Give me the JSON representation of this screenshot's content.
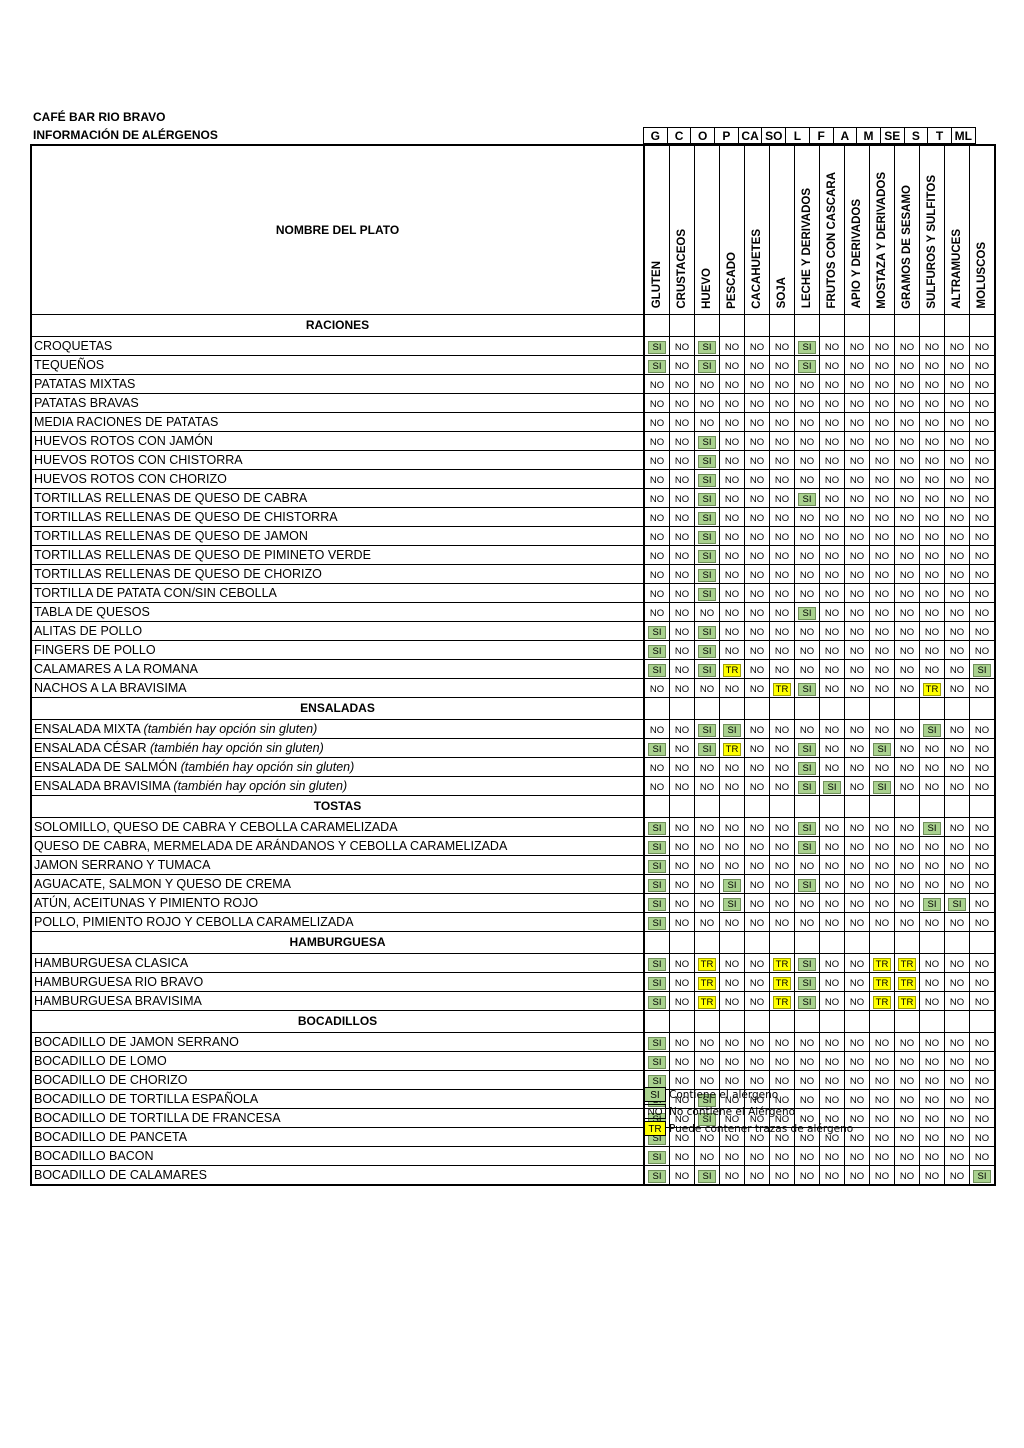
{
  "header": {
    "title": "CAFÉ BAR RIO BRAVO",
    "subtitle": "INFORMACIÓN DE ALÉRGENOS"
  },
  "codes": [
    "G",
    "C",
    "O",
    "P",
    "CA",
    "SO",
    "L",
    "F",
    "A",
    "M",
    "SE",
    "S",
    "T",
    "ML"
  ],
  "name_header": "NOMBRE DEL PLATO",
  "allergens": [
    "GLUTEN",
    "CRUSTACEOS",
    "HUEVO",
    "PESCADO",
    "CACAHUETES",
    "SOJA",
    "LECHE Y DERIVADOS",
    "FRUTOS CON CASCARA",
    "APIO Y DERIVADOS",
    "MOSTAZA Y DERIVADOS",
    "GRAMOS DE SESAMO",
    "SULFUROS Y SULFITOS",
    "ALTRAMUCES",
    "MOLUSCOS"
  ],
  "colors": {
    "si": "#a9d18e",
    "tr": "#ffff00"
  },
  "sections": [
    {
      "name": "RACIONES",
      "rows": [
        {
          "dish": "CROQUETAS",
          "note": "",
          "values": [
            "SI",
            "NO",
            "SI",
            "NO",
            "NO",
            "NO",
            "SI",
            "NO",
            "NO",
            "NO",
            "NO",
            "NO",
            "NO",
            "NO"
          ]
        },
        {
          "dish": "TEQUEÑOS",
          "note": "",
          "values": [
            "SI",
            "NO",
            "SI",
            "NO",
            "NO",
            "NO",
            "SI",
            "NO",
            "NO",
            "NO",
            "NO",
            "NO",
            "NO",
            "NO"
          ]
        },
        {
          "dish": "PATATAS MIXTAS",
          "note": "",
          "values": [
            "NO",
            "NO",
            "NO",
            "NO",
            "NO",
            "NO",
            "NO",
            "NO",
            "NO",
            "NO",
            "NO",
            "NO",
            "NO",
            "NO"
          ]
        },
        {
          "dish": "PATATAS BRAVAS",
          "note": "",
          "values": [
            "NO",
            "NO",
            "NO",
            "NO",
            "NO",
            "NO",
            "NO",
            "NO",
            "NO",
            "NO",
            "NO",
            "NO",
            "NO",
            "NO"
          ]
        },
        {
          "dish": "MEDIA RACIONES DE PATATAS",
          "note": "",
          "values": [
            "NO",
            "NO",
            "NO",
            "NO",
            "NO",
            "NO",
            "NO",
            "NO",
            "NO",
            "NO",
            "NO",
            "NO",
            "NO",
            "NO"
          ]
        },
        {
          "dish": "HUEVOS ROTOS CON JAMÓN",
          "note": "",
          "values": [
            "NO",
            "NO",
            "SI",
            "NO",
            "NO",
            "NO",
            "NO",
            "NO",
            "NO",
            "NO",
            "NO",
            "NO",
            "NO",
            "NO"
          ]
        },
        {
          "dish": "HUEVOS ROTOS CON CHISTORRA",
          "note": "",
          "values": [
            "NO",
            "NO",
            "SI",
            "NO",
            "NO",
            "NO",
            "NO",
            "NO",
            "NO",
            "NO",
            "NO",
            "NO",
            "NO",
            "NO"
          ]
        },
        {
          "dish": "HUEVOS ROTOS CON CHORIZO",
          "note": "",
          "values": [
            "NO",
            "NO",
            "SI",
            "NO",
            "NO",
            "NO",
            "NO",
            "NO",
            "NO",
            "NO",
            "NO",
            "NO",
            "NO",
            "NO"
          ]
        },
        {
          "dish": "TORTILLAS RELLENAS DE QUESO DE CABRA",
          "note": "",
          "values": [
            "NO",
            "NO",
            "SI",
            "NO",
            "NO",
            "NO",
            "SI",
            "NO",
            "NO",
            "NO",
            "NO",
            "NO",
            "NO",
            "NO"
          ]
        },
        {
          "dish": "TORTILLAS RELLENAS DE QUESO DE CHISTORRA",
          "note": "",
          "values": [
            "NO",
            "NO",
            "SI",
            "NO",
            "NO",
            "NO",
            "NO",
            "NO",
            "NO",
            "NO",
            "NO",
            "NO",
            "NO",
            "NO"
          ]
        },
        {
          "dish": "TORTILLAS RELLENAS DE QUESO DE JAMON",
          "note": "",
          "values": [
            "NO",
            "NO",
            "SI",
            "NO",
            "NO",
            "NO",
            "NO",
            "NO",
            "NO",
            "NO",
            "NO",
            "NO",
            "NO",
            "NO"
          ]
        },
        {
          "dish": "TORTILLAS RELLENAS DE QUESO DE PIMINETO VERDE",
          "note": "",
          "values": [
            "NO",
            "NO",
            "SI",
            "NO",
            "NO",
            "NO",
            "NO",
            "NO",
            "NO",
            "NO",
            "NO",
            "NO",
            "NO",
            "NO"
          ]
        },
        {
          "dish": "TORTILLAS RELLENAS DE QUESO DE CHORIZO",
          "note": "",
          "values": [
            "NO",
            "NO",
            "SI",
            "NO",
            "NO",
            "NO",
            "NO",
            "NO",
            "NO",
            "NO",
            "NO",
            "NO",
            "NO",
            "NO"
          ]
        },
        {
          "dish": "TORTILLA DE PATATA CON/SIN CEBOLLA",
          "note": "",
          "values": [
            "NO",
            "NO",
            "SI",
            "NO",
            "NO",
            "NO",
            "NO",
            "NO",
            "NO",
            "NO",
            "NO",
            "NO",
            "NO",
            "NO"
          ]
        },
        {
          "dish": "TABLA DE QUESOS",
          "note": "",
          "values": [
            "NO",
            "NO",
            "NO",
            "NO",
            "NO",
            "NO",
            "SI",
            "NO",
            "NO",
            "NO",
            "NO",
            "NO",
            "NO",
            "NO"
          ]
        },
        {
          "dish": "ALITAS DE POLLO",
          "note": "",
          "values": [
            "SI",
            "NO",
            "SI",
            "NO",
            "NO",
            "NO",
            "NO",
            "NO",
            "NO",
            "NO",
            "NO",
            "NO",
            "NO",
            "NO"
          ]
        },
        {
          "dish": "FINGERS DE POLLO",
          "note": "",
          "values": [
            "SI",
            "NO",
            "SI",
            "NO",
            "NO",
            "NO",
            "NO",
            "NO",
            "NO",
            "NO",
            "NO",
            "NO",
            "NO",
            "NO"
          ]
        },
        {
          "dish": "CALAMARES A LA ROMANA",
          "note": "",
          "values": [
            "SI",
            "NO",
            "SI",
            "TR",
            "NO",
            "NO",
            "NO",
            "NO",
            "NO",
            "NO",
            "NO",
            "NO",
            "NO",
            "SI"
          ]
        },
        {
          "dish": "NACHOS A LA BRAVISIMA",
          "note": "",
          "values": [
            "NO",
            "NO",
            "NO",
            "NO",
            "NO",
            "TR",
            "SI",
            "NO",
            "NO",
            "NO",
            "NO",
            "TR",
            "NO",
            "NO"
          ]
        }
      ]
    },
    {
      "name": "ENSALADAS",
      "rows": [
        {
          "dish": "ENSALADA MIXTA ",
          "note": "(también hay opción sin gluten)",
          "values": [
            "NO",
            "NO",
            "SI",
            "SI",
            "NO",
            "NO",
            "NO",
            "NO",
            "NO",
            "NO",
            "NO",
            "SI",
            "NO",
            "NO"
          ]
        },
        {
          "dish": "ENSALADA CÉSAR ",
          "note": "(también hay opción sin gluten)",
          "values": [
            "SI",
            "NO",
            "SI",
            "TR",
            "NO",
            "NO",
            "SI",
            "NO",
            "NO",
            "SI",
            "NO",
            "NO",
            "NO",
            "NO"
          ]
        },
        {
          "dish": "ENSALADA DE SALMÓN ",
          "note": "(también hay opción sin gluten)",
          "values": [
            "NO",
            "NO",
            "NO",
            "NO",
            "NO",
            "NO",
            "SI",
            "NO",
            "NO",
            "NO",
            "NO",
            "NO",
            "NO",
            "NO"
          ]
        },
        {
          "dish": "ENSALADA BRAVISIMA ",
          "note": "(también hay opción sin gluten)",
          "values": [
            "NO",
            "NO",
            "NO",
            "NO",
            "NO",
            "NO",
            "SI",
            "SI",
            "NO",
            "SI",
            "NO",
            "NO",
            "NO",
            "NO"
          ]
        }
      ]
    },
    {
      "name": "TOSTAS",
      "rows": [
        {
          "dish": "SOLOMILLO, QUESO DE CABRA Y CEBOLLA CARAMELIZADA",
          "note": "",
          "values": [
            "SI",
            "NO",
            "NO",
            "NO",
            "NO",
            "NO",
            "SI",
            "NO",
            "NO",
            "NO",
            "NO",
            "SI",
            "NO",
            "NO"
          ]
        },
        {
          "dish": "QUESO DE CABRA, MERMELADA DE ARÁNDANOS Y CEBOLLA CARAMELIZADA",
          "note": "",
          "values": [
            "SI",
            "NO",
            "NO",
            "NO",
            "NO",
            "NO",
            "SI",
            "NO",
            "NO",
            "NO",
            "NO",
            "NO",
            "NO",
            "NO"
          ]
        },
        {
          "dish": "JAMON SERRANO Y TUMACA",
          "note": "",
          "values": [
            "SI",
            "NO",
            "NO",
            "NO",
            "NO",
            "NO",
            "NO",
            "NO",
            "NO",
            "NO",
            "NO",
            "NO",
            "NO",
            "NO"
          ]
        },
        {
          "dish": "AGUACATE, SALMON Y QUESO DE CREMA",
          "note": "",
          "values": [
            "SI",
            "NO",
            "NO",
            "SI",
            "NO",
            "NO",
            "SI",
            "NO",
            "NO",
            "NO",
            "NO",
            "NO",
            "NO",
            "NO"
          ]
        },
        {
          "dish": "ATÚN, ACEITUNAS Y PIMIENTO ROJO",
          "note": "",
          "values": [
            "SI",
            "NO",
            "NO",
            "SI",
            "NO",
            "NO",
            "NO",
            "NO",
            "NO",
            "NO",
            "NO",
            "SI",
            "SI",
            "NO"
          ]
        },
        {
          "dish": "POLLO, PIMIENTO ROJO Y CEBOLLA CARAMELIZADA",
          "note": "",
          "values": [
            "SI",
            "NO",
            "NO",
            "NO",
            "NO",
            "NO",
            "NO",
            "NO",
            "NO",
            "NO",
            "NO",
            "NO",
            "NO",
            "NO"
          ]
        }
      ]
    },
    {
      "name": "HAMBURGUESA",
      "rows": [
        {
          "dish": "HAMBURGUESA CLASICA",
          "note": "",
          "values": [
            "SI",
            "NO",
            "TR",
            "NO",
            "NO",
            "TR",
            "SI",
            "NO",
            "NO",
            "TR",
            "TR",
            "NO",
            "NO",
            "NO"
          ]
        },
        {
          "dish": "HAMBURGUESA RIO BRAVO",
          "note": "",
          "values": [
            "SI",
            "NO",
            "TR",
            "NO",
            "NO",
            "TR",
            "SI",
            "NO",
            "NO",
            "TR",
            "TR",
            "NO",
            "NO",
            "NO"
          ]
        },
        {
          "dish": "HAMBURGUESA BRAVISIMA",
          "note": "",
          "values": [
            "SI",
            "NO",
            "TR",
            "NO",
            "NO",
            "TR",
            "SI",
            "NO",
            "NO",
            "TR",
            "TR",
            "NO",
            "NO",
            "NO"
          ]
        }
      ]
    },
    {
      "name": "BOCADILLOS",
      "rows": [
        {
          "dish": "BOCADILLO DE JAMON SERRANO",
          "note": "",
          "values": [
            "SI",
            "NO",
            "NO",
            "NO",
            "NO",
            "NO",
            "NO",
            "NO",
            "NO",
            "NO",
            "NO",
            "NO",
            "NO",
            "NO"
          ]
        },
        {
          "dish": "BOCADILLO DE LOMO",
          "note": "",
          "values": [
            "SI",
            "NO",
            "NO",
            "NO",
            "NO",
            "NO",
            "NO",
            "NO",
            "NO",
            "NO",
            "NO",
            "NO",
            "NO",
            "NO"
          ]
        },
        {
          "dish": "BOCADILLO DE CHORIZO",
          "note": "",
          "values": [
            "SI",
            "NO",
            "NO",
            "NO",
            "NO",
            "NO",
            "NO",
            "NO",
            "NO",
            "NO",
            "NO",
            "NO",
            "NO",
            "NO"
          ]
        },
        {
          "dish": "BOCADILLO DE TORTILLA ESPAÑOLA",
          "note": "",
          "values": [
            "SI",
            "NO",
            "SI",
            "NO",
            "NO",
            "NO",
            "NO",
            "NO",
            "NO",
            "NO",
            "NO",
            "NO",
            "NO",
            "NO"
          ]
        },
        {
          "dish": "BOCADILLO DE TORTILLA DE FRANCESA",
          "note": "",
          "values": [
            "SI",
            "NO",
            "SI",
            "NO",
            "NO",
            "NO",
            "NO",
            "NO",
            "NO",
            "NO",
            "NO",
            "NO",
            "NO",
            "NO"
          ]
        },
        {
          "dish": "BOCADILLO DE PANCETA",
          "note": "",
          "values": [
            "SI",
            "NO",
            "NO",
            "NO",
            "NO",
            "NO",
            "NO",
            "NO",
            "NO",
            "NO",
            "NO",
            "NO",
            "NO",
            "NO"
          ]
        },
        {
          "dish": "BOCADILLO BACON",
          "note": "",
          "values": [
            "SI",
            "NO",
            "NO",
            "NO",
            "NO",
            "NO",
            "NO",
            "NO",
            "NO",
            "NO",
            "NO",
            "NO",
            "NO",
            "NO"
          ]
        },
        {
          "dish": "BOCADILLO DE CALAMARES",
          "note": "",
          "values": [
            "SI",
            "NO",
            "SI",
            "NO",
            "NO",
            "NO",
            "NO",
            "NO",
            "NO",
            "NO",
            "NO",
            "NO",
            "NO",
            "SI"
          ]
        }
      ]
    }
  ],
  "legend": [
    {
      "code": "SI",
      "label": "Contiene el alérgeno"
    },
    {
      "code": "NO",
      "label": "No contiene el Alérgeno"
    },
    {
      "code": "TR",
      "label": "Puede contener trazas de alérgeno"
    }
  ]
}
